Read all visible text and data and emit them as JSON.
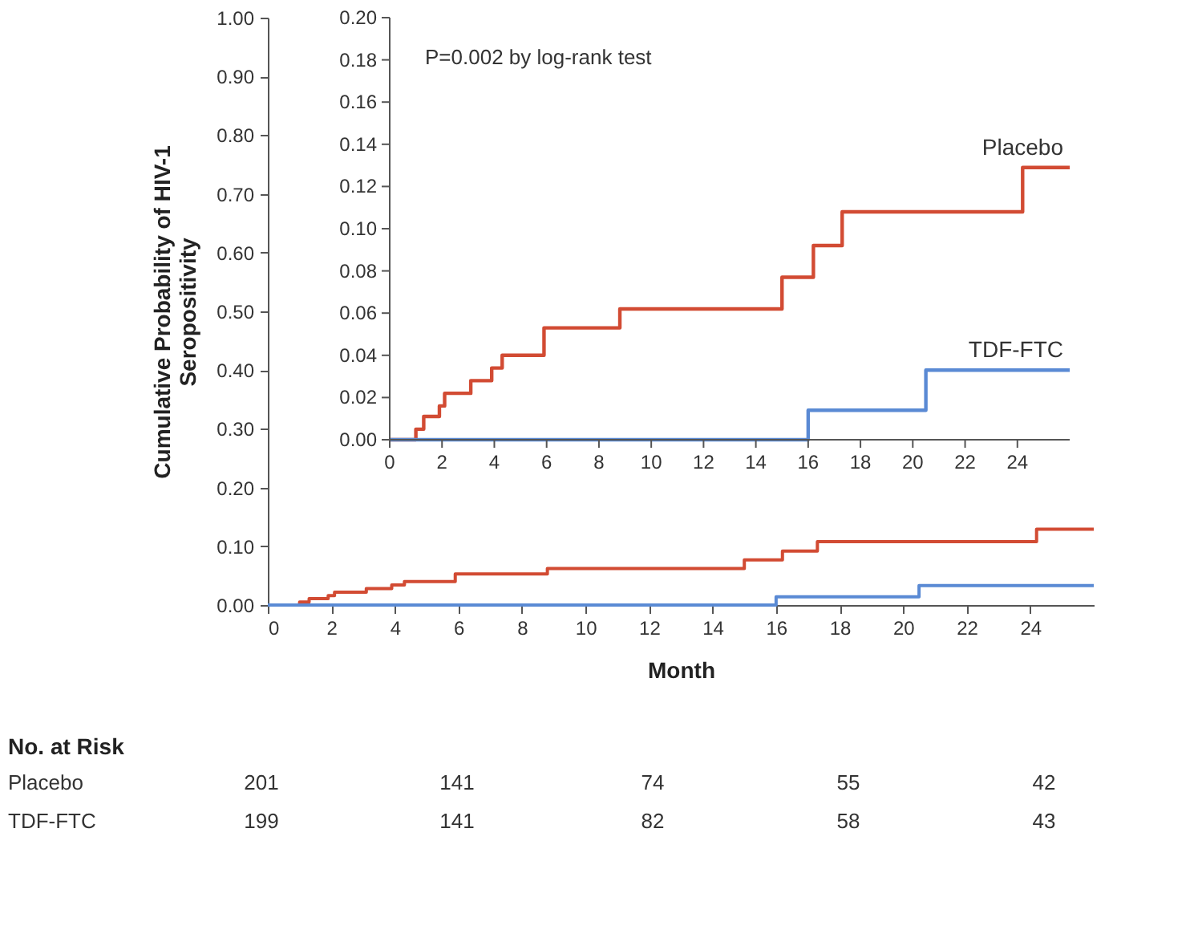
{
  "chart_data": [
    {
      "type": "step",
      "xlabel": "Month",
      "ylabel": "Cumulative Probability of HIV-1 Seropositivity",
      "xlim": [
        0,
        26
      ],
      "xticks": [
        0,
        2,
        4,
        6,
        8,
        10,
        12,
        14,
        16,
        18,
        20,
        22,
        24
      ],
      "ylim": [
        0,
        1.0
      ],
      "yticks": [
        {
          "value": 0,
          "label": "0.00"
        },
        {
          "value": 0.1,
          "label": "0.10"
        },
        {
          "value": 0.2,
          "label": "0.20"
        },
        {
          "value": 0.3,
          "label": "0.30"
        },
        {
          "value": 0.4,
          "label": "0.40"
        },
        {
          "value": 0.5,
          "label": "0.50"
        },
        {
          "value": 0.6,
          "label": "0.60"
        },
        {
          "value": 0.7,
          "label": "0.70"
        },
        {
          "value": 0.8,
          "label": "0.80"
        },
        {
          "value": 0.9,
          "label": "0.90"
        },
        {
          "value": 1.0,
          "label": "1.00"
        }
      ],
      "grid": false,
      "legend": false,
      "line_style": "solid",
      "marker": "none",
      "series": [
        {
          "color": "#d24b33",
          "x": [
            0,
            1.0,
            1.3,
            1.9,
            2.1,
            3.1,
            3.9,
            4.3,
            5.9,
            8.8,
            15.0,
            16.2,
            17.3,
            24.2,
            26.0
          ],
          "values": [
            0,
            0.005,
            0.011,
            0.016,
            0.022,
            0.028,
            0.034,
            0.04,
            0.053,
            0.062,
            0.077,
            0.092,
            0.108,
            0.129,
            0.129
          ]
        },
        {
          "color": "#5a8ad4",
          "x": [
            0,
            16.0,
            20.5,
            26.0
          ],
          "values": [
            0,
            0.014,
            0.033,
            0.033
          ]
        }
      ],
      "annotations": [
        "No. at Risk",
        "Placebo",
        "201",
        "141",
        "74",
        "55",
        "42",
        "TDF-FTC",
        "199",
        "141",
        "82",
        "58",
        "43"
      ]
    },
    {
      "type": "step",
      "xlim": [
        0,
        26
      ],
      "xticks": [
        0,
        2,
        4,
        6,
        8,
        10,
        12,
        14,
        16,
        18,
        20,
        22,
        24
      ],
      "ylim": [
        0,
        0.2
      ],
      "yticks": [
        {
          "value": 0,
          "label": "0.00"
        },
        {
          "value": 0.02,
          "label": "0.02"
        },
        {
          "value": 0.04,
          "label": "0.04"
        },
        {
          "value": 0.06,
          "label": "0.06"
        },
        {
          "value": 0.08,
          "label": "0.08"
        },
        {
          "value": 0.1,
          "label": "0.10"
        },
        {
          "value": 0.12,
          "label": "0.12"
        },
        {
          "value": 0.14,
          "label": "0.14"
        },
        {
          "value": 0.16,
          "label": "0.16"
        },
        {
          "value": 0.18,
          "label": "0.18"
        },
        {
          "value": 0.2,
          "label": "0.20"
        }
      ],
      "grid": false,
      "legend": false,
      "line_style": "solid",
      "marker": "none",
      "series": [
        {
          "name": "Placebo",
          "color": "#d24b33",
          "x": [
            0,
            1.0,
            1.3,
            1.9,
            2.1,
            3.1,
            3.9,
            4.3,
            5.9,
            8.8,
            15.0,
            16.2,
            17.3,
            24.2,
            26.0
          ],
          "values": [
            0,
            0.005,
            0.011,
            0.016,
            0.022,
            0.028,
            0.034,
            0.04,
            0.053,
            0.062,
            0.077,
            0.092,
            0.108,
            0.129,
            0.129
          ]
        },
        {
          "name": "TDF-FTC",
          "color": "#5a8ad4",
          "x": [
            0,
            16.0,
            20.5,
            26.0
          ],
          "values": [
            0,
            0.014,
            0.033,
            0.033
          ]
        }
      ],
      "annotations": [
        "P=0.002 by log-rank test"
      ]
    }
  ]
}
